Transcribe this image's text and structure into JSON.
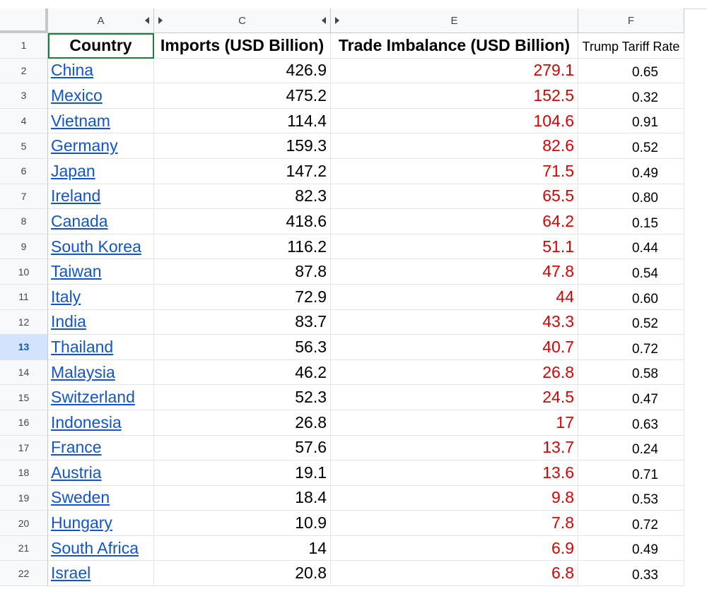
{
  "column_headers": {
    "a": "A",
    "c": "C",
    "e": "E",
    "f": "F"
  },
  "header_row": {
    "country": "Country",
    "imports": "Imports (USD Billion)",
    "trade_imbalance": "Trade Imbalance (USD Billion)",
    "tariff_rate": "Trump Tariff Rate"
  },
  "selected_row": "13",
  "rows": [
    {
      "n": "2",
      "country": "China",
      "imports": "426.9",
      "imbalance": "279.1",
      "rate": "0.65"
    },
    {
      "n": "3",
      "country": "Mexico",
      "imports": "475.2",
      "imbalance": "152.5",
      "rate": "0.32"
    },
    {
      "n": "4",
      "country": "Vietnam",
      "imports": "114.4",
      "imbalance": "104.6",
      "rate": "0.91"
    },
    {
      "n": "5",
      "country": "Germany",
      "imports": "159.3",
      "imbalance": "82.6",
      "rate": "0.52"
    },
    {
      "n": "6",
      "country": "Japan",
      "imports": "147.2",
      "imbalance": "71.5",
      "rate": "0.49"
    },
    {
      "n": "7",
      "country": "Ireland",
      "imports": "82.3",
      "imbalance": "65.5",
      "rate": "0.80"
    },
    {
      "n": "8",
      "country": "Canada",
      "imports": "418.6",
      "imbalance": "64.2",
      "rate": "0.15"
    },
    {
      "n": "9",
      "country": "South Korea",
      "imports": "116.2",
      "imbalance": "51.1",
      "rate": "0.44"
    },
    {
      "n": "10",
      "country": "Taiwan",
      "imports": "87.8",
      "imbalance": "47.8",
      "rate": "0.54"
    },
    {
      "n": "11",
      "country": "Italy",
      "imports": "72.9",
      "imbalance": "44",
      "rate": "0.60"
    },
    {
      "n": "12",
      "country": "India",
      "imports": "83.7",
      "imbalance": "43.3",
      "rate": "0.52"
    },
    {
      "n": "13",
      "country": "Thailand",
      "imports": "56.3",
      "imbalance": "40.7",
      "rate": "0.72"
    },
    {
      "n": "14",
      "country": "Malaysia",
      "imports": "46.2",
      "imbalance": "26.8",
      "rate": "0.58"
    },
    {
      "n": "15",
      "country": "Switzerland",
      "imports": "52.3",
      "imbalance": "24.5",
      "rate": "0.47"
    },
    {
      "n": "16",
      "country": "Indonesia",
      "imports": "26.8",
      "imbalance": "17",
      "rate": "0.63"
    },
    {
      "n": "17",
      "country": "France",
      "imports": "57.6",
      "imbalance": "13.7",
      "rate": "0.24"
    },
    {
      "n": "18",
      "country": "Austria",
      "imports": "19.1",
      "imbalance": "13.6",
      "rate": "0.71"
    },
    {
      "n": "19",
      "country": "Sweden",
      "imports": "18.4",
      "imbalance": "9.8",
      "rate": "0.53"
    },
    {
      "n": "20",
      "country": "Hungary",
      "imports": "10.9",
      "imbalance": "7.8",
      "rate": "0.72"
    },
    {
      "n": "21",
      "country": "South Africa",
      "imports": "14",
      "imbalance": "6.9",
      "rate": "0.49"
    },
    {
      "n": "22",
      "country": "Israel",
      "imports": "20.8",
      "imbalance": "6.8",
      "rate": "0.33"
    }
  ]
}
